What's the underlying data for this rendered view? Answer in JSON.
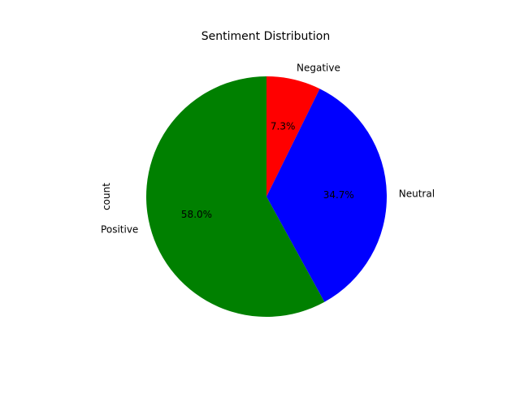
{
  "chart_data": {
    "type": "pie",
    "title": "Sentiment Distribution",
    "ylabel": "count",
    "start_angle_deg": 90,
    "direction": "clockwise",
    "slices": [
      {
        "label": "Negative",
        "percent": 7.3,
        "percent_label": "7.3%",
        "color": "#ff0000"
      },
      {
        "label": "Neutral",
        "percent": 34.7,
        "percent_label": "34.7%",
        "color": "#0000ff"
      },
      {
        "label": "Positive",
        "percent": 58.0,
        "percent_label": "58.0%",
        "color": "#008000"
      }
    ]
  }
}
